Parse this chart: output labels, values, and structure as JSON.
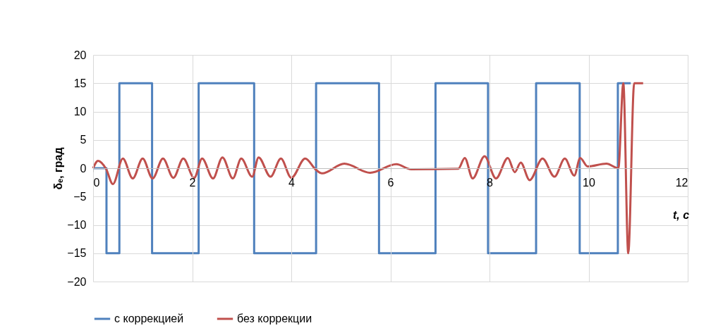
{
  "chart_data": {
    "type": "line",
    "xlabel": "t, с",
    "ylabel": "δₑ, град",
    "xlim": [
      0,
      12
    ],
    "xticks": [
      0,
      2,
      4,
      6,
      8,
      10,
      12
    ],
    "ylim": [
      -20,
      20
    ],
    "yticks": [
      -20,
      -15,
      -10,
      -5,
      0,
      5,
      10,
      15,
      20
    ],
    "grid": true,
    "legend": "bottom",
    "line_style": "solid",
    "marker": "none",
    "series": [
      {
        "name": "с коррекцией",
        "type": "step",
        "color": "#4f81bd",
        "x": [
          0,
          0.27,
          0.53,
          1.19,
          2.13,
          3.25,
          4.5,
          5.77,
          6.91,
          7.97,
          8.94,
          9.82,
          10.59,
          10.85
        ],
        "values": [
          0,
          -15,
          15,
          -15,
          15,
          -15,
          15,
          -15,
          15,
          -15,
          15,
          -15,
          15,
          15
        ]
      },
      {
        "name": "без коррекции",
        "type": "line",
        "color": "#c0504d",
        "x": [
          0,
          0.1,
          0.26,
          0.4,
          0.6,
          0.8,
          1.0,
          1.2,
          1.41,
          1.62,
          1.82,
          2.04,
          2.2,
          2.42,
          2.61,
          2.82,
          2.99,
          3.21,
          3.34,
          3.58,
          3.79,
          4.0,
          4.28,
          4.5,
          4.62,
          5.07,
          5.59,
          6.12,
          6.42,
          7.37,
          7.5,
          7.66,
          7.9,
          8.13,
          8.37,
          8.51,
          8.63,
          8.81,
          9.07,
          9.31,
          9.52,
          9.71,
          9.83,
          9.98,
          10.36,
          10.6,
          10.7,
          10.8,
          10.92,
          11.1
        ],
        "values": [
          0,
          1.3,
          -0.1,
          -2.8,
          1.7,
          -1.8,
          1.7,
          -1.8,
          1.7,
          -1.7,
          1.7,
          -1.7,
          1.7,
          -1.8,
          1.9,
          -1.8,
          1.7,
          -1.5,
          1.9,
          -1.5,
          1.7,
          -1.7,
          1.7,
          -0.3,
          -0.9,
          0.8,
          -0.8,
          0.7,
          -0.2,
          -0.1,
          1.8,
          -1.8,
          2.1,
          -1.8,
          1.8,
          -0.7,
          1.0,
          -2.1,
          1.7,
          -1.5,
          1.7,
          -1.3,
          1.8,
          0.3,
          0.8,
          0,
          15,
          -15,
          15,
          15
        ]
      }
    ]
  }
}
